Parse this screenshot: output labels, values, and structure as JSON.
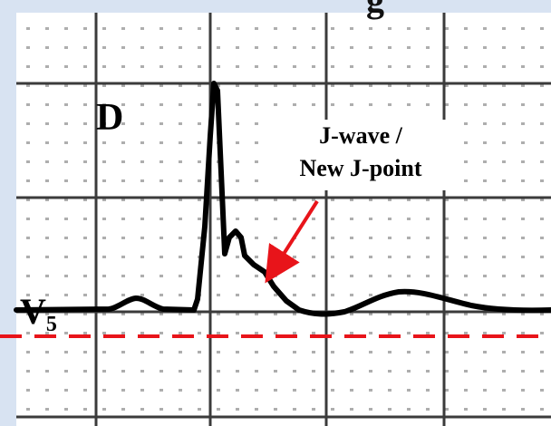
{
  "panel": {
    "letter": "D",
    "lead_label": "V",
    "lead_subscript": "5",
    "top_partial_text": "g"
  },
  "annotation": {
    "line1": "J-wave /",
    "line2": "New J-point"
  },
  "colors": {
    "frame": "#d8e3f2",
    "paper": "#ffffff",
    "grid_major": "#1a1a1a",
    "grid_minor_dot": "#9a9a9a",
    "trace": "#000000",
    "baseline_dash": "#e8141a",
    "arrow": "#e8141a"
  },
  "icons": {
    "arrow": "red-arrow-icon",
    "baseline": "dashed-reference-line"
  }
}
